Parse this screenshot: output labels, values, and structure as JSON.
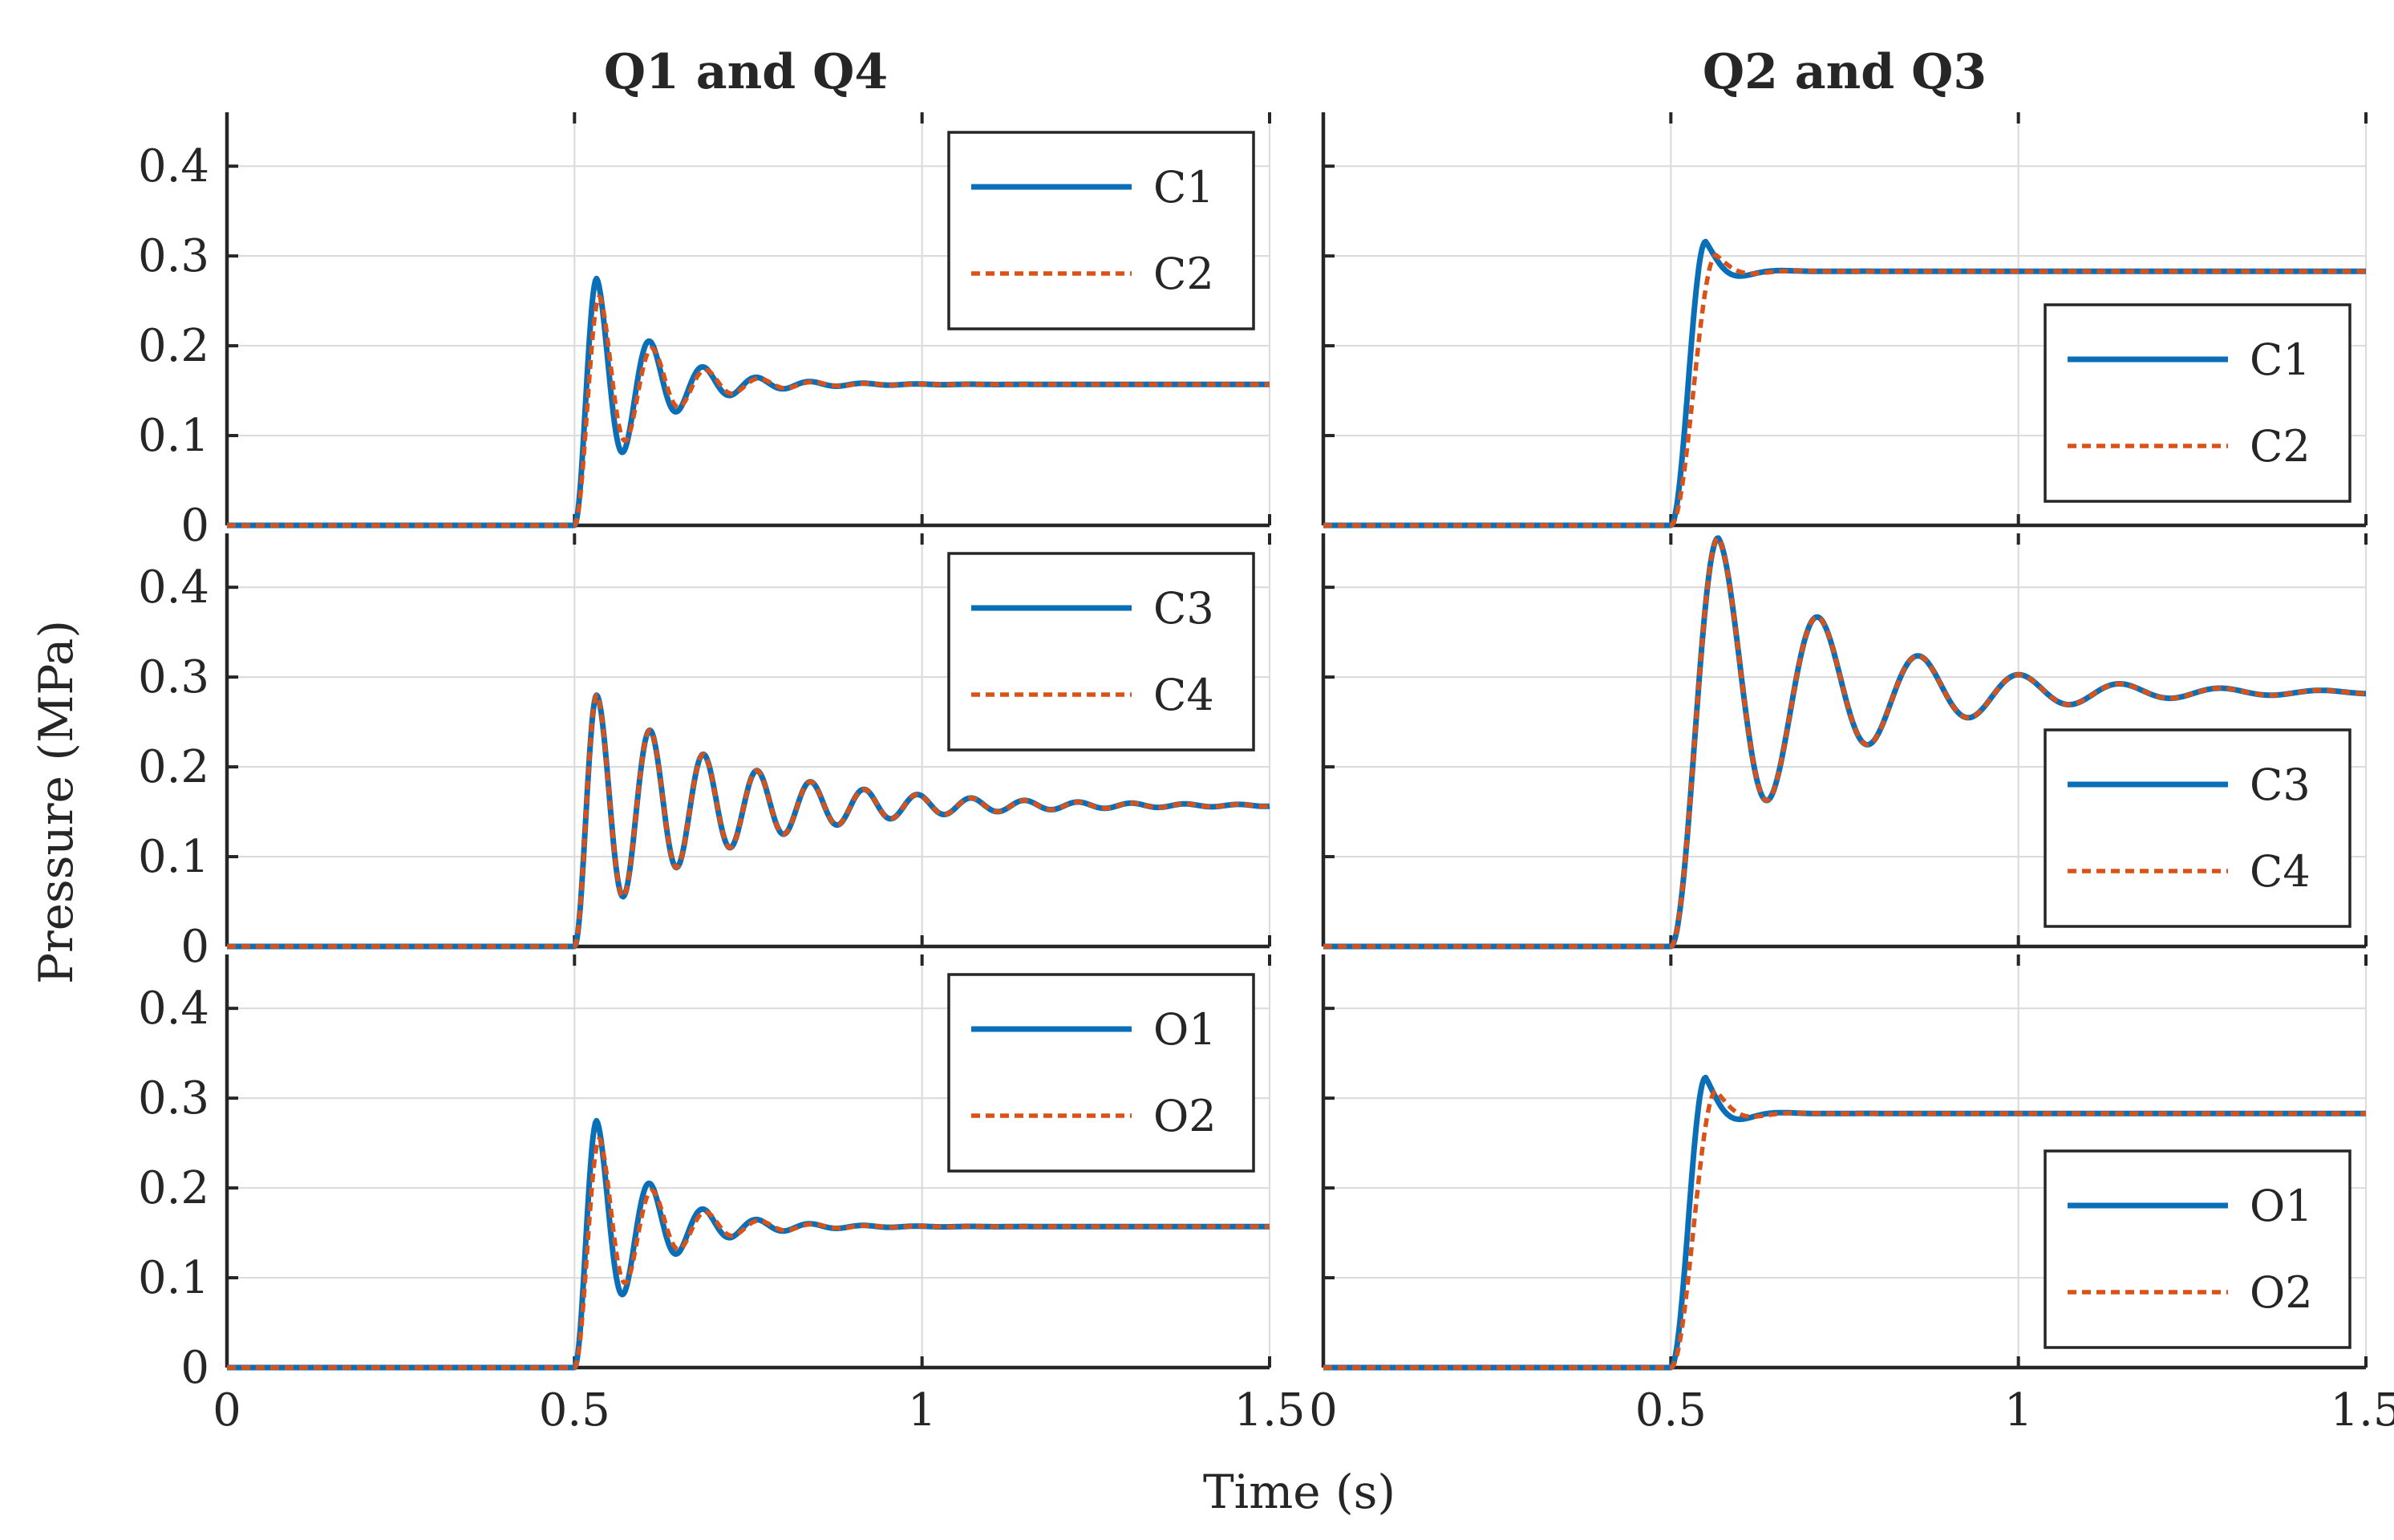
{
  "figure": {
    "xlabel": "Time (s)",
    "ylabel": "Pressure (MPa)",
    "column_titles": [
      "Q1 and Q4",
      "Q2 and Q3"
    ],
    "colors": {
      "solid": "#0b6fb8",
      "dashed": "#d95319"
    }
  },
  "chart_data": [
    {
      "type": "line",
      "panel": "row1-col1",
      "title": "Q1 and Q4",
      "xlim": [
        0,
        1.5
      ],
      "ylim": [
        0,
        0.46
      ],
      "xticks": [
        "0",
        "0.5",
        "1",
        "1.5"
      ],
      "xtick_values": [
        0,
        0.5,
        1,
        1.5
      ],
      "yticks": [
        "0",
        "0.1",
        "0.2",
        "0.3",
        "0.4"
      ],
      "ytick_values": [
        0,
        0.1,
        0.2,
        0.3,
        0.4
      ],
      "show_xticklabels": false,
      "show_yticklabels": true,
      "legend_position": "top-right",
      "series": [
        {
          "name": "C1",
          "style": "solid",
          "step_time": 0.5,
          "final": 0.157,
          "overshoot": 0.118,
          "rise": 0.032,
          "period": 0.077,
          "decay": 0.085
        },
        {
          "name": "C2",
          "style": "dashed",
          "step_time": 0.5,
          "final": 0.157,
          "overshoot": 0.098,
          "rise": 0.036,
          "period": 0.077,
          "decay": 0.085
        }
      ]
    },
    {
      "type": "line",
      "panel": "row1-col2",
      "title": "Q2 and Q3",
      "xlim": [
        0,
        1.5
      ],
      "ylim": [
        0,
        0.46
      ],
      "xticks": [
        "0",
        "0.5",
        "1",
        "1.5"
      ],
      "xtick_values": [
        0,
        0.5,
        1,
        1.5
      ],
      "yticks": [
        "0",
        "0.1",
        "0.2",
        "0.3",
        "0.4"
      ],
      "ytick_values": [
        0,
        0.1,
        0.2,
        0.3,
        0.4
      ],
      "show_xticklabels": false,
      "show_yticklabels": false,
      "legend_position": "mid-right",
      "series": [
        {
          "name": "C1",
          "style": "solid",
          "step_time": 0.5,
          "final": 0.283,
          "overshoot": 0.033,
          "rise": 0.05,
          "period": 0.12,
          "decay": 0.03
        },
        {
          "name": "C2",
          "style": "dashed",
          "step_time": 0.5,
          "final": 0.283,
          "overshoot": 0.018,
          "rise": 0.065,
          "period": 0.13,
          "decay": 0.03
        }
      ]
    },
    {
      "type": "line",
      "panel": "row2-col1",
      "xlim": [
        0,
        1.5
      ],
      "ylim": [
        0,
        0.46
      ],
      "xticks": [
        "0",
        "0.5",
        "1",
        "1.5"
      ],
      "xtick_values": [
        0,
        0.5,
        1,
        1.5
      ],
      "yticks": [
        "0",
        "0.1",
        "0.2",
        "0.3",
        "0.4"
      ],
      "ytick_values": [
        0,
        0.1,
        0.2,
        0.3,
        0.4
      ],
      "show_xticklabels": false,
      "show_yticklabels": true,
      "legend_position": "top-right",
      "series": [
        {
          "name": "C3",
          "style": "solid",
          "step_time": 0.5,
          "final": 0.157,
          "overshoot": 0.123,
          "rise": 0.032,
          "period": 0.077,
          "decay": 0.2
        },
        {
          "name": "C4",
          "style": "dashed",
          "step_time": 0.5,
          "final": 0.157,
          "overshoot": 0.123,
          "rise": 0.032,
          "period": 0.077,
          "decay": 0.2
        }
      ]
    },
    {
      "type": "line",
      "panel": "row2-col2",
      "xlim": [
        0,
        1.5
      ],
      "ylim": [
        0,
        0.46
      ],
      "xticks": [
        "0",
        "0.5",
        "1",
        "1.5"
      ],
      "xtick_values": [
        0,
        0.5,
        1,
        1.5
      ],
      "yticks": [
        "0",
        "0.1",
        "0.2",
        "0.3",
        "0.4"
      ],
      "ytick_values": [
        0,
        0.1,
        0.2,
        0.3,
        0.4
      ],
      "show_xticklabels": false,
      "show_yticklabels": false,
      "legend_position": "bottom-right",
      "series": [
        {
          "name": "C3",
          "style": "solid",
          "step_time": 0.5,
          "final": 0.283,
          "overshoot": 0.172,
          "rise": 0.068,
          "period": 0.145,
          "decay": 0.2
        },
        {
          "name": "C4",
          "style": "dashed",
          "step_time": 0.5,
          "final": 0.283,
          "overshoot": 0.172,
          "rise": 0.068,
          "period": 0.145,
          "decay": 0.2
        }
      ]
    },
    {
      "type": "line",
      "panel": "row3-col1",
      "xlim": [
        0,
        1.5
      ],
      "ylim": [
        0,
        0.46
      ],
      "xticks": [
        "0",
        "0.5",
        "1",
        "1.5"
      ],
      "xtick_values": [
        0,
        0.5,
        1,
        1.5
      ],
      "yticks": [
        "0",
        "0.1",
        "0.2",
        "0.3",
        "0.4"
      ],
      "ytick_values": [
        0,
        0.1,
        0.2,
        0.3,
        0.4
      ],
      "show_xticklabels": true,
      "show_yticklabels": true,
      "legend_position": "top-right",
      "series": [
        {
          "name": "O1",
          "style": "solid",
          "step_time": 0.5,
          "final": 0.157,
          "overshoot": 0.118,
          "rise": 0.032,
          "period": 0.077,
          "decay": 0.085
        },
        {
          "name": "O2",
          "style": "dashed",
          "step_time": 0.5,
          "final": 0.157,
          "overshoot": 0.098,
          "rise": 0.036,
          "period": 0.077,
          "decay": 0.085
        }
      ]
    },
    {
      "type": "line",
      "panel": "row3-col2",
      "xlim": [
        0,
        1.5
      ],
      "ylim": [
        0,
        0.46
      ],
      "xticks": [
        "0",
        "0.5",
        "1",
        "1.5"
      ],
      "xtick_values": [
        0,
        0.5,
        1,
        1.5
      ],
      "yticks": [
        "0",
        "0.1",
        "0.2",
        "0.3",
        "0.4"
      ],
      "ytick_values": [
        0,
        0.1,
        0.2,
        0.3,
        0.4
      ],
      "show_xticklabels": true,
      "show_yticklabels": false,
      "legend_position": "bottom-right",
      "series": [
        {
          "name": "O1",
          "style": "solid",
          "step_time": 0.5,
          "final": 0.283,
          "overshoot": 0.04,
          "rise": 0.05,
          "period": 0.12,
          "decay": 0.03
        },
        {
          "name": "O2",
          "style": "dashed",
          "step_time": 0.5,
          "final": 0.283,
          "overshoot": 0.025,
          "rise": 0.065,
          "period": 0.13,
          "decay": 0.03
        }
      ]
    }
  ]
}
